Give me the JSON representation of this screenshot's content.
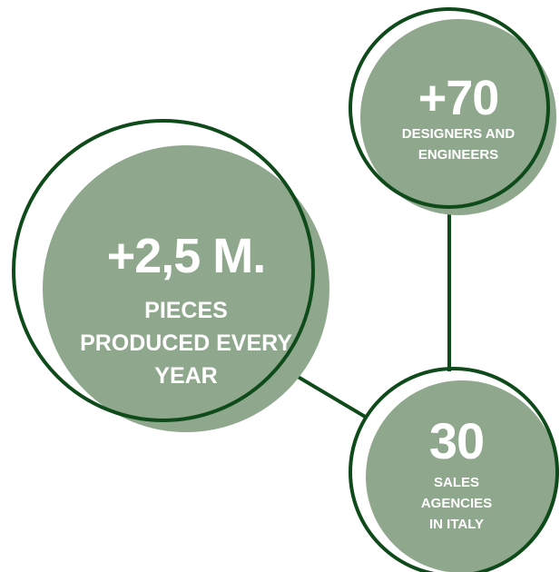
{
  "colors": {
    "fill": "#8FA88D",
    "stroke": "#0F4A1B",
    "background": "#FFFFFF",
    "text": "#FFFFFF"
  },
  "stats": [
    {
      "id": "pieces",
      "value": "+2,5 M.",
      "lines": [
        "PIECES",
        "PRODUCED EVERY",
        "YEAR"
      ]
    },
    {
      "id": "designers",
      "value": "+70",
      "lines": [
        "DESIGNERS AND",
        "ENGINEERS"
      ]
    },
    {
      "id": "agencies",
      "value": "30",
      "lines": [
        "SALES",
        "AGENCIES",
        "IN ITALY"
      ]
    }
  ]
}
